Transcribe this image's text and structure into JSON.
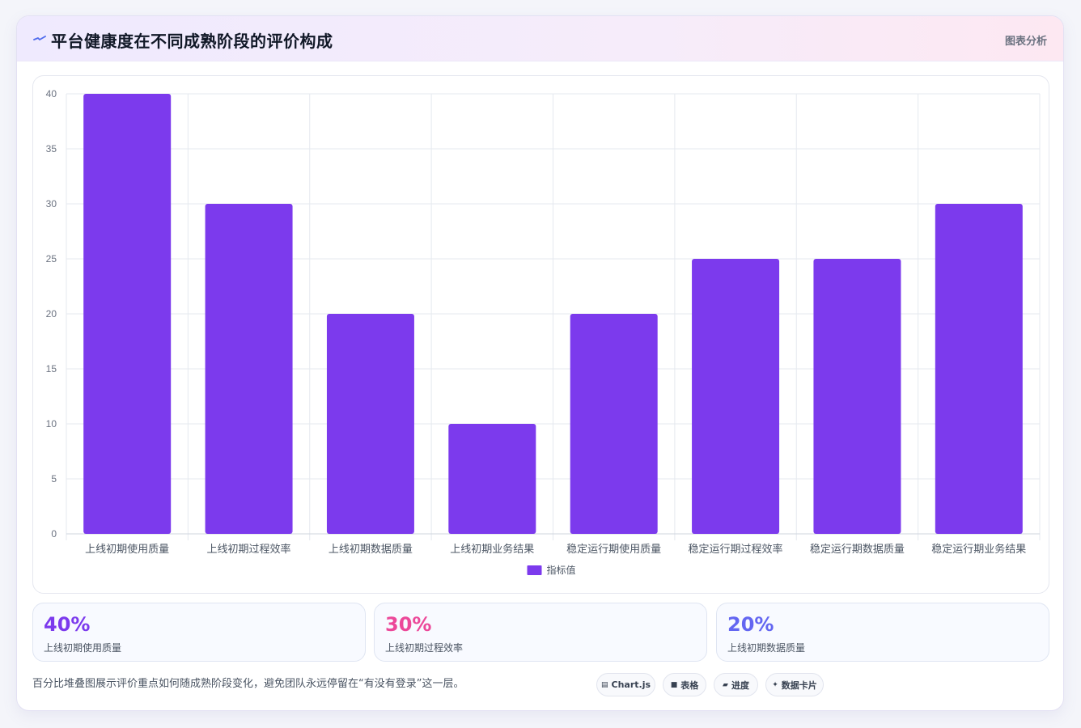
{
  "header": {
    "title": "平台健康度在不同成熟阶段的评价构成",
    "tag": "图表分析",
    "icon": "spark-icon",
    "icon_color": "#4f6bed"
  },
  "chart_data": {
    "type": "bar",
    "categories": [
      "上线初期使用质量",
      "上线初期过程效率",
      "上线初期数据质量",
      "上线初期业务结果",
      "稳定运行期使用质量",
      "稳定运行期过程效率",
      "稳定运行期数据质量",
      "稳定运行期业务结果"
    ],
    "series": [
      {
        "name": "指标值",
        "values": [
          40,
          30,
          20,
          10,
          20,
          25,
          25,
          30
        ],
        "color": "#7c3aed"
      }
    ],
    "ylim": [
      0,
      40
    ],
    "yticks": [
      0,
      5,
      10,
      15,
      20,
      25,
      30,
      35,
      40
    ],
    "grid": true,
    "legend": "bottom"
  },
  "stats": [
    {
      "value": "40%",
      "label": "上线初期使用质量",
      "color": "#7c3aed"
    },
    {
      "value": "30%",
      "label": "上线初期过程效率",
      "color": "#ec4899"
    },
    {
      "value": "20%",
      "label": "上线初期数据质量",
      "color": "#6366f1"
    }
  ],
  "footnote": "百分比堆叠图展示评价重点如何随成熟阶段变化，避免团队永远停留在“有没有登录”这一层。",
  "pills": [
    {
      "icon": "▤",
      "icon_name": "chart-icon",
      "label": "Chart.js"
    },
    {
      "icon": "■",
      "icon_name": "table-icon",
      "label": "表格"
    },
    {
      "icon": "▰",
      "icon_name": "progress-icon",
      "label": "进度"
    },
    {
      "icon": "✦",
      "icon_name": "sparkle-icon",
      "label": "数据卡片"
    }
  ]
}
